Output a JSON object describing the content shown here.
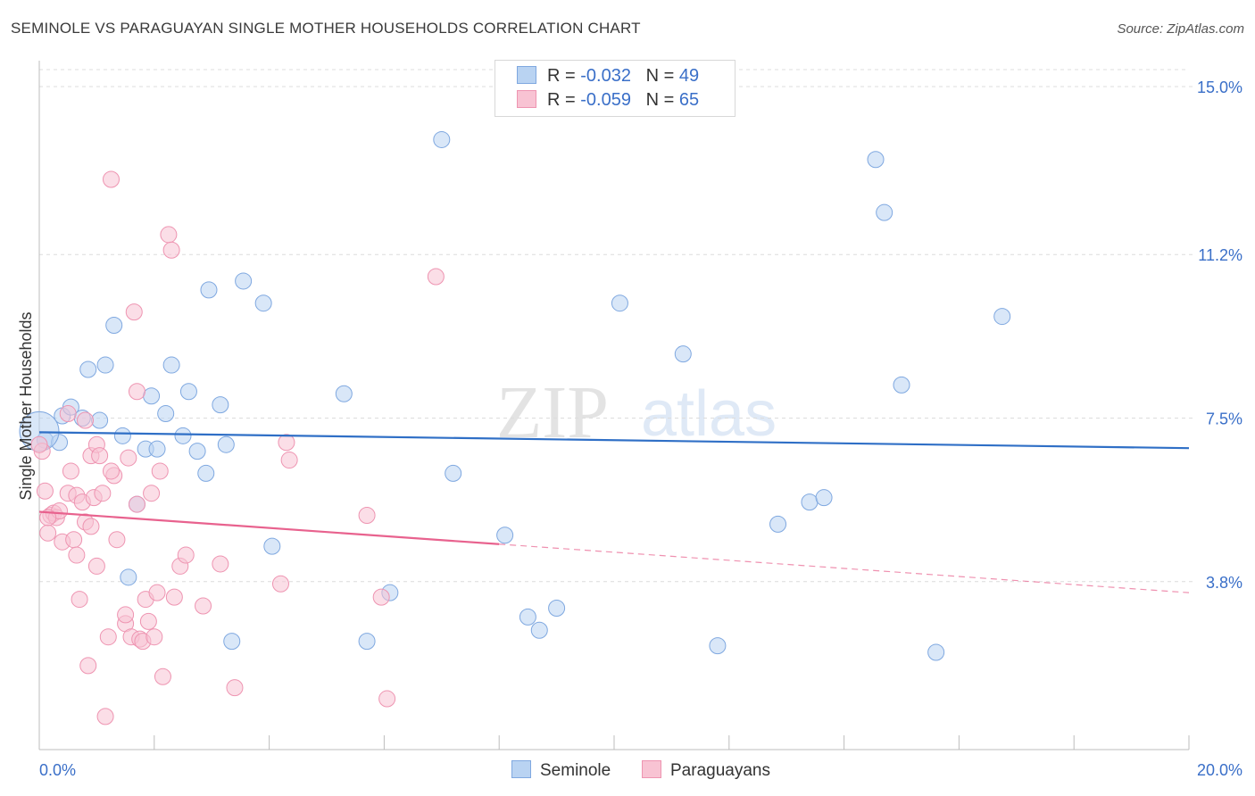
{
  "header": {
    "title": "SEMINOLE VS PARAGUAYAN SINGLE MOTHER HOUSEHOLDS CORRELATION CHART",
    "source": "Source: ZipAtlas.com"
  },
  "legend_top": {
    "rows": [
      {
        "r_label": "R =",
        "r_value": "-0.032",
        "n_label": "N =",
        "n_value": "49"
      },
      {
        "r_label": "R =",
        "r_value": "-0.059",
        "n_label": "N =",
        "n_value": "65"
      }
    ]
  },
  "legend_bottom": {
    "seminole": "Seminole",
    "paraguayans": "Paraguayans"
  },
  "watermark": {
    "zip": "ZIP",
    "atlas": "atlas"
  },
  "colors": {
    "seminole_fill": "#b9d3f2",
    "seminole_stroke": "#7fa8e0",
    "seminole_line": "#2f6fc6",
    "paraguayan_fill": "#f8c3d3",
    "paraguayan_stroke": "#ee94b1",
    "paraguayan_line": "#e8628e",
    "tick_label": "#3a6fc8",
    "grid": "#dcdcdc"
  },
  "chart_data": {
    "type": "scatter",
    "title": "SEMINOLE VS PARAGUAYAN SINGLE MOTHER HOUSEHOLDS CORRELATION CHART",
    "xlabel": "",
    "ylabel": "Single Mother Households",
    "xlim": [
      0,
      20
    ],
    "ylim": [
      0,
      15.5
    ],
    "x_tick_labels": [
      "0.0%",
      "20.0%"
    ],
    "y_ticks": [
      3.8,
      7.5,
      11.2,
      15.0
    ],
    "y_tick_labels": [
      "3.8%",
      "7.5%",
      "11.2%",
      "15.0%"
    ],
    "grid": true,
    "legend_position": "top-center",
    "series": [
      {
        "name": "Seminole",
        "r": -0.032,
        "n": 49,
        "trend": {
          "x0": 0,
          "y0": 7.18,
          "x1": 20,
          "y1": 6.82,
          "x_solid_end": 20
        },
        "points": [
          [
            0.1,
            7.0
          ],
          [
            0.35,
            6.95
          ],
          [
            0.4,
            7.55
          ],
          [
            0.55,
            7.75
          ],
          [
            0.75,
            7.5
          ],
          [
            0.85,
            8.6
          ],
          [
            1.05,
            7.45
          ],
          [
            1.15,
            8.7
          ],
          [
            1.3,
            9.6
          ],
          [
            1.45,
            7.1
          ],
          [
            1.55,
            3.9
          ],
          [
            1.7,
            5.55
          ],
          [
            1.85,
            6.8
          ],
          [
            1.95,
            8.0
          ],
          [
            2.05,
            6.8
          ],
          [
            2.2,
            7.6
          ],
          [
            2.3,
            8.7
          ],
          [
            2.5,
            7.1
          ],
          [
            2.6,
            8.1
          ],
          [
            2.75,
            6.75
          ],
          [
            2.9,
            6.25
          ],
          [
            2.95,
            10.4
          ],
          [
            3.15,
            7.8
          ],
          [
            3.25,
            6.9
          ],
          [
            3.35,
            2.45
          ],
          [
            3.55,
            10.6
          ],
          [
            3.9,
            10.1
          ],
          [
            4.05,
            4.6
          ],
          [
            5.3,
            8.05
          ],
          [
            5.7,
            2.45
          ],
          [
            6.1,
            3.55
          ],
          [
            7.0,
            13.8
          ],
          [
            7.2,
            6.25
          ],
          [
            8.1,
            4.85
          ],
          [
            8.5,
            3.0
          ],
          [
            8.7,
            2.7
          ],
          [
            9.0,
            3.2
          ],
          [
            10.1,
            10.1
          ],
          [
            11.2,
            8.95
          ],
          [
            11.8,
            2.35
          ],
          [
            12.85,
            5.1
          ],
          [
            13.4,
            5.6
          ],
          [
            13.65,
            5.7
          ],
          [
            14.55,
            13.35
          ],
          [
            14.7,
            12.15
          ],
          [
            15.0,
            8.25
          ],
          [
            15.6,
            2.2
          ],
          [
            16.75,
            9.8
          ],
          [
            0.0,
            7.2
          ]
        ]
      },
      {
        "name": "Paraguayans",
        "r": -0.059,
        "n": 65,
        "trend": {
          "x0": 0,
          "y0": 5.38,
          "x1": 20,
          "y1": 3.55,
          "x_solid_end": 8.0
        },
        "points": [
          [
            0.05,
            6.75
          ],
          [
            0.1,
            5.85
          ],
          [
            0.15,
            4.9
          ],
          [
            0.2,
            5.3
          ],
          [
            0.25,
            5.35
          ],
          [
            0.3,
            5.25
          ],
          [
            0.35,
            5.4
          ],
          [
            0.4,
            4.7
          ],
          [
            0.5,
            7.6
          ],
          [
            0.5,
            5.8
          ],
          [
            0.55,
            6.3
          ],
          [
            0.6,
            4.75
          ],
          [
            0.65,
            5.75
          ],
          [
            0.65,
            4.4
          ],
          [
            0.7,
            3.4
          ],
          [
            0.75,
            5.6
          ],
          [
            0.8,
            5.15
          ],
          [
            0.8,
            7.45
          ],
          [
            0.85,
            1.9
          ],
          [
            0.9,
            5.05
          ],
          [
            0.9,
            6.65
          ],
          [
            0.95,
            5.7
          ],
          [
            1.0,
            6.9
          ],
          [
            1.0,
            4.15
          ],
          [
            1.05,
            6.65
          ],
          [
            1.1,
            5.8
          ],
          [
            1.15,
            0.75
          ],
          [
            1.2,
            2.55
          ],
          [
            1.3,
            6.2
          ],
          [
            1.25,
            6.3
          ],
          [
            1.25,
            12.9
          ],
          [
            1.35,
            4.75
          ],
          [
            1.5,
            2.85
          ],
          [
            1.5,
            3.05
          ],
          [
            1.55,
            6.6
          ],
          [
            1.6,
            2.55
          ],
          [
            1.65,
            9.9
          ],
          [
            1.7,
            8.1
          ],
          [
            1.7,
            5.55
          ],
          [
            1.75,
            2.5
          ],
          [
            1.8,
            2.45
          ],
          [
            1.85,
            3.4
          ],
          [
            1.9,
            2.9
          ],
          [
            1.95,
            5.8
          ],
          [
            2.0,
            2.55
          ],
          [
            2.05,
            3.55
          ],
          [
            2.1,
            6.3
          ],
          [
            2.15,
            1.65
          ],
          [
            2.25,
            11.65
          ],
          [
            2.3,
            11.3
          ],
          [
            2.35,
            3.45
          ],
          [
            2.45,
            4.15
          ],
          [
            2.55,
            4.4
          ],
          [
            2.85,
            3.25
          ],
          [
            3.15,
            4.2
          ],
          [
            3.4,
            1.4
          ],
          [
            4.2,
            3.75
          ],
          [
            4.3,
            6.95
          ],
          [
            4.35,
            6.55
          ],
          [
            5.7,
            5.3
          ],
          [
            5.95,
            3.45
          ],
          [
            6.05,
            1.15
          ],
          [
            6.9,
            10.7
          ],
          [
            0.0,
            6.9
          ],
          [
            0.15,
            5.25
          ]
        ]
      }
    ]
  }
}
